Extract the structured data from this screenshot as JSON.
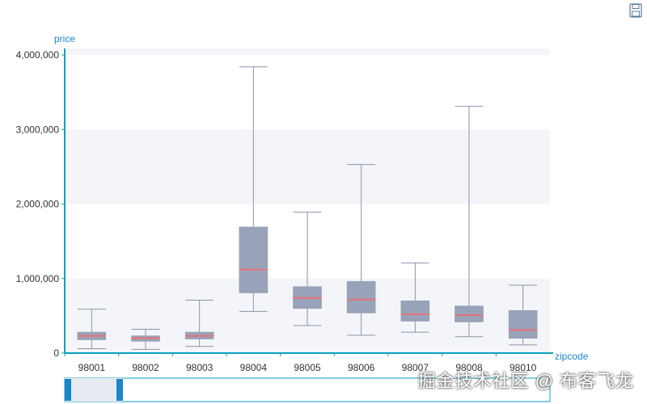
{
  "toolbar": {
    "save_icon": "save-disk-icon"
  },
  "chart_data": {
    "type": "boxplot",
    "title": "",
    "xlabel": "zipcode",
    "ylabel": "price",
    "ylim": [
      0,
      4000000
    ],
    "yticks": [
      0,
      1000000,
      2000000,
      3000000,
      4000000
    ],
    "ytick_labels": [
      "0",
      "1,000,000",
      "2,000,000",
      "3,000,000",
      "4,000,000"
    ],
    "grid": "banded",
    "categories": [
      "98001",
      "98002",
      "98003",
      "98004",
      "98005",
      "98006",
      "98007",
      "98008",
      "98010"
    ],
    "boxes": [
      {
        "category": "98001",
        "min": 60000,
        "q1": 180000,
        "median": 230000,
        "q3": 280000,
        "max": 590000
      },
      {
        "category": "98002",
        "min": 50000,
        "q1": 160000,
        "median": 200000,
        "q3": 230000,
        "max": 320000
      },
      {
        "category": "98003",
        "min": 90000,
        "q1": 190000,
        "median": 230000,
        "q3": 280000,
        "max": 710000
      },
      {
        "category": "98004",
        "min": 560000,
        "q1": 810000,
        "median": 1120000,
        "q3": 1690000,
        "max": 3840000
      },
      {
        "category": "98005",
        "min": 370000,
        "q1": 600000,
        "median": 740000,
        "q3": 890000,
        "max": 1890000
      },
      {
        "category": "98006",
        "min": 240000,
        "q1": 540000,
        "median": 720000,
        "q3": 960000,
        "max": 2530000
      },
      {
        "category": "98007",
        "min": 280000,
        "q1": 430000,
        "median": 520000,
        "q3": 700000,
        "max": 1210000
      },
      {
        "category": "98008",
        "min": 220000,
        "q1": 420000,
        "median": 510000,
        "q3": 630000,
        "max": 3310000
      },
      {
        "category": "98010",
        "min": 110000,
        "q1": 200000,
        "median": 310000,
        "q3": 570000,
        "max": 910000
      }
    ],
    "colors": {
      "box": "#98a3b9",
      "median": "#e8717a",
      "whisker": "#8a94a8",
      "axis": "#0aa0c0",
      "axis_title": "#1a86c8",
      "band": "#f4f5f8"
    },
    "data_zoom": {
      "start": 0.0,
      "end": 0.12
    }
  },
  "watermark": {
    "text": "掘金技术社区 @ 布客飞龙"
  }
}
